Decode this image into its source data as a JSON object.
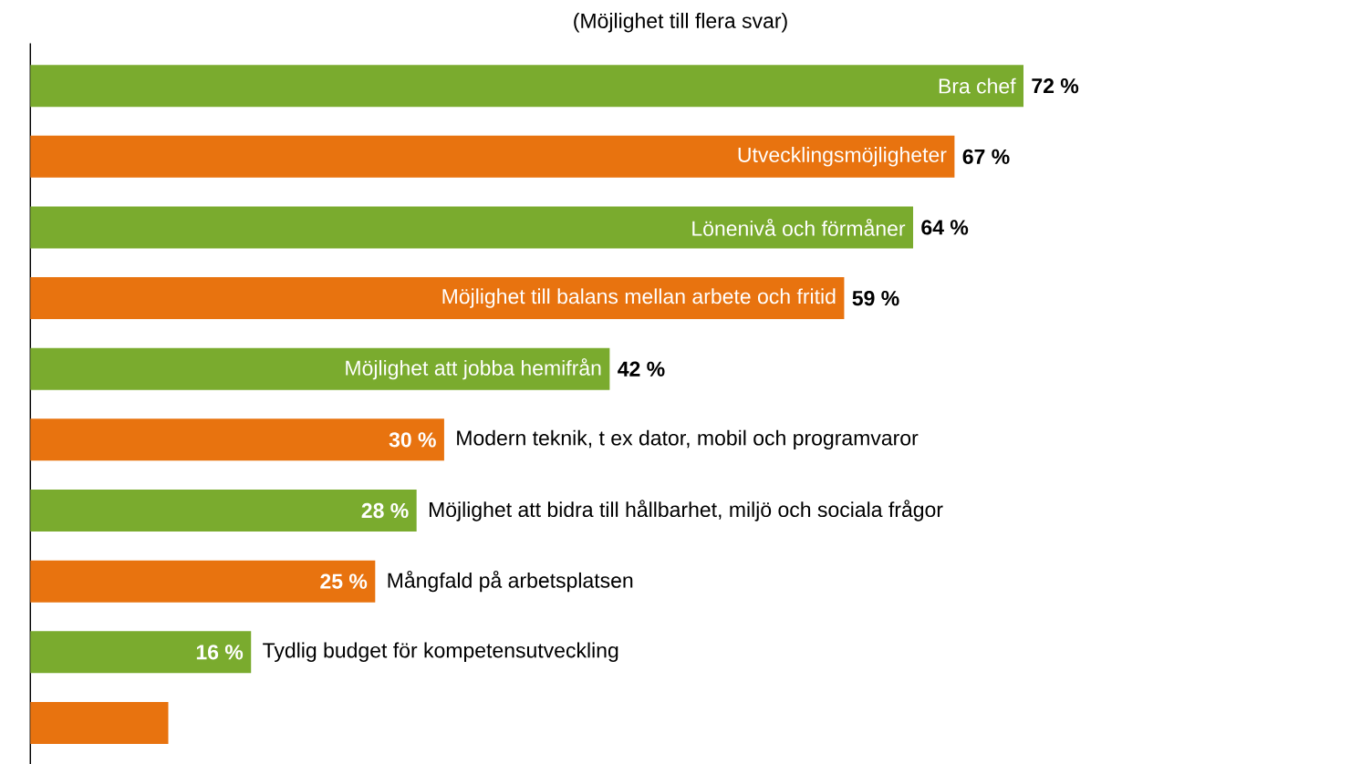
{
  "chart_data": {
    "type": "bar",
    "orientation": "horizontal",
    "subtitle": "(Möjlighet till flera svar)",
    "categories": [
      "Bra chef",
      "Utvecklingsmöjligheter",
      "Lönenivå och förmåner",
      "Möjlighet till balans mellan arbete och fritid",
      "Möjlighet att jobba hemifrån",
      "Modern teknik, t ex dator, mobil och programvaror",
      "Möjlighet att bidra till hållbarhet, miljö och sociala frågor",
      "Mångfald på arbetsplatsen",
      "Tydlig budget för kompetensutveckling",
      null
    ],
    "values": [
      72,
      67,
      64,
      59,
      42,
      30,
      28,
      25,
      16,
      10
    ],
    "value_labels": [
      "72 %",
      "67 %",
      "64 %",
      "59 %",
      "42 %",
      "30 %",
      "28 %",
      "25 %",
      "16 %",
      null
    ],
    "colors": [
      "#7aab2e",
      "#e8730f",
      "#7aab2e",
      "#e8730f",
      "#7aab2e",
      "#e8730f",
      "#7aab2e",
      "#e8730f",
      "#7aab2e",
      "#e8730f"
    ]
  }
}
